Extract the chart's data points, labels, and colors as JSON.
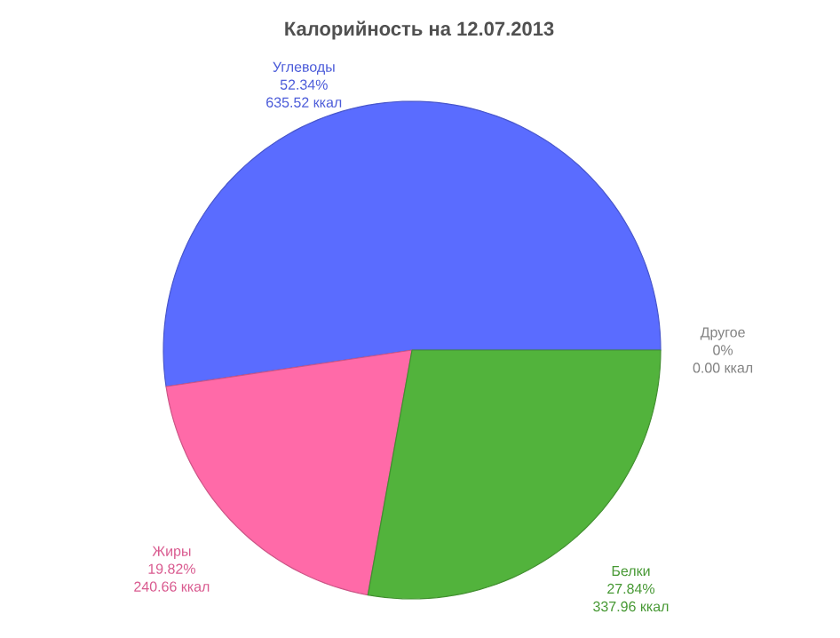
{
  "chart_data": {
    "type": "pie",
    "title": "Калорийность на 12.07.2013",
    "categories": [
      "Углеводы",
      "Жиры",
      "Белки",
      "Другое"
    ],
    "values": [
      52.34,
      19.82,
      27.84,
      0
    ],
    "value_labels": [
      "52.34%",
      "19.82%",
      "27.84%",
      "0%"
    ],
    "colors": [
      "#5a6cff",
      "#ff6aa8",
      "#52b33c",
      "#9a9a9a"
    ],
    "annotations": [
      "635.52 ккал",
      "240.66 ккал",
      "337.96 ккал",
      "0.00 ккал"
    ]
  }
}
